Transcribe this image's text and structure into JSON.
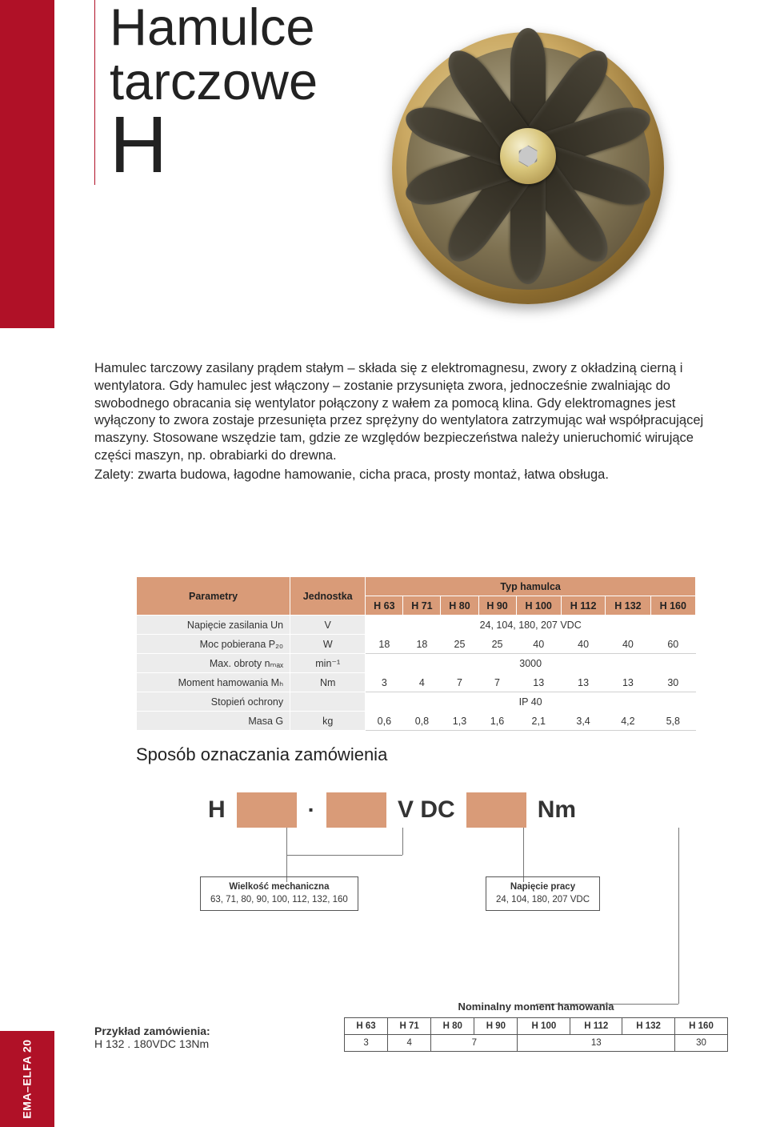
{
  "colors": {
    "brand_red": "#B01127",
    "accent_peach": "#d99b78",
    "grey_cell": "#ececec",
    "text": "#2a2a2a",
    "border_white": "#ffffff"
  },
  "title": {
    "line1": "Hamulce",
    "line2": "tarczowe",
    "model": "H"
  },
  "hero": {
    "alt": "fan-brake-assembly",
    "blade_count": 10
  },
  "description": [
    "Hamulec tarczowy zasilany prądem stałym – składa się z elektromagnesu, zwory z okładziną cierną i wentylatora. Gdy hamulec jest włączony – zostanie przysunięta zwora, jednocześnie zwalniając do swobodnego obracania się wentylator połączony z wałem za pomocą klina. Gdy elektromagnes jest wyłączony to zwora zostaje przesunięta przez sprężyny do wentylatora zatrzymując wał współpracującej maszyny. Stosowane wszędzie tam, gdzie ze względów bezpieczeństwa należy unieruchomić wirujące części maszyn, np. obrabiarki do drewna.",
    "Zalety: zwarta budowa, łagodne hamowanie, cicha praca, prosty montaż, łatwa obsługa."
  ],
  "param_table": {
    "corner_param": "Parametry",
    "corner_unit": "Jednostka",
    "group_header": "Typ hamulca",
    "columns": [
      "H 63",
      "H 71",
      "H 80",
      "H 90",
      "H 100",
      "H 112",
      "H 132",
      "H 160"
    ],
    "rows": [
      {
        "label": "Napięcie zasilania Un",
        "unit": "V",
        "span_value": "24, 104, 180, 207 VDC"
      },
      {
        "label": "Moc pobierana P₂₀",
        "unit": "W",
        "values": [
          "18",
          "18",
          "25",
          "25",
          "40",
          "40",
          "40",
          "60"
        ]
      },
      {
        "label": "Max. obroty nₘₐₓ",
        "unit": "min⁻¹",
        "span_value": "3000"
      },
      {
        "label": "Moment hamowania Mₕ",
        "unit": "Nm",
        "values": [
          "3",
          "4",
          "7",
          "7",
          "13",
          "13",
          "13",
          "30"
        ]
      },
      {
        "label": "Stopień ochrony",
        "unit": "",
        "span_value": "IP 40"
      },
      {
        "label": "Masa G",
        "unit": "kg",
        "values": [
          "0,6",
          "0,8",
          "1,3",
          "1,6",
          "2,1",
          "3,4",
          "4,2",
          "5,8"
        ]
      }
    ]
  },
  "order_heading": "Sposób oznaczania zamówienia",
  "order_line": {
    "parts": [
      "H",
      "[box]",
      ".",
      "[box]",
      "V DC",
      "[box]",
      "Nm"
    ]
  },
  "order_annotations": {
    "left": {
      "title": "Wielkość mechaniczna",
      "sub": "63, 71, 80, 90, 100, 112, 132, 160"
    },
    "mid": {
      "title": "Napięcie pracy",
      "sub": "24, 104, 180, 207 VDC"
    }
  },
  "example": {
    "title": "Przykład zamówienia:",
    "value": "H 132 . 180VDC 13Nm"
  },
  "nominal_table": {
    "title": "Nominalny moment hamowania",
    "columns": [
      "H 63",
      "H 71",
      "H 80",
      "H 90",
      "H 100",
      "H 112",
      "H 132",
      "H 160"
    ],
    "row": [
      {
        "v": "3",
        "span": 1
      },
      {
        "v": "4",
        "span": 1
      },
      {
        "v": "7",
        "span": 2
      },
      {
        "v": "13",
        "span": 3
      },
      {
        "v": "30",
        "span": 1
      }
    ],
    "vline_from_box3": true
  },
  "page_label": "EMA–ELFA 20"
}
